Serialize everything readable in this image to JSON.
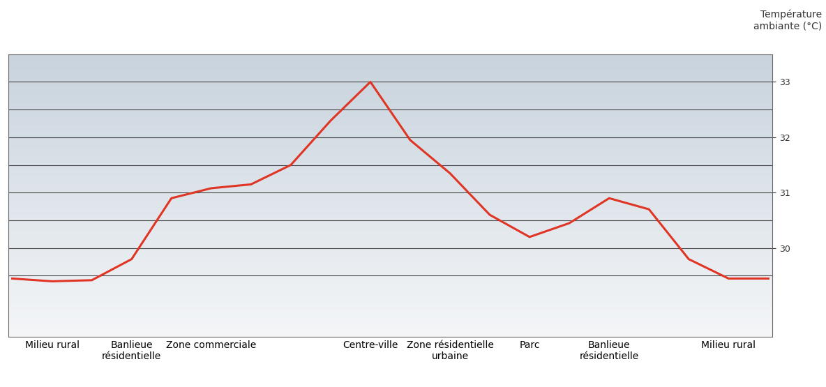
{
  "chart_data": {
    "type": "line",
    "y_label": "Température ambiante (°C)",
    "categories": [
      null,
      "Milieu rural",
      null,
      "Banlieue résidentielle",
      null,
      "Zone commerciale",
      null,
      null,
      null,
      "Centre-ville",
      null,
      "Zone résidentielle urbaine",
      null,
      "Parc",
      null,
      "Banlieue résidentielle",
      null,
      null,
      "Milieu rural",
      null
    ],
    "values": [
      29.45,
      29.4,
      29.42,
      29.8,
      30.9,
      31.08,
      31.15,
      31.5,
      32.3,
      33.0,
      31.95,
      31.35,
      30.6,
      30.2,
      30.45,
      30.9,
      30.7,
      29.8,
      29.45,
      29.45
    ],
    "color": "#e03524",
    "ylim": [
      28.4,
      33.5
    ],
    "yticks": [
      30,
      31,
      32,
      33
    ],
    "grid": true
  }
}
